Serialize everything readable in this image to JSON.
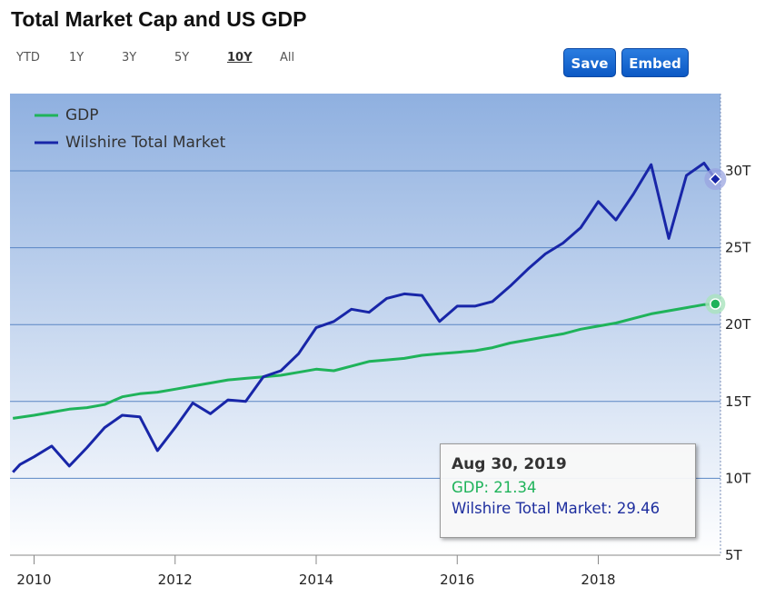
{
  "title": "Total Market Cap and US GDP",
  "range_buttons": [
    {
      "label": "YTD",
      "active": false
    },
    {
      "label": "1Y",
      "active": false
    },
    {
      "label": "3Y",
      "active": false
    },
    {
      "label": "5Y",
      "active": false
    },
    {
      "label": "10Y",
      "active": true
    },
    {
      "label": "All",
      "active": false
    }
  ],
  "actions": {
    "save_label": "Save",
    "embed_label": "Embed"
  },
  "tooltip": {
    "date": "Aug 30, 2019",
    "gdp": "GDP: 21.34",
    "wilshire": "Wilshire Total Market: 29.46"
  },
  "colors": {
    "gdp": "#1fb35a",
    "wilshire": "#1826a8",
    "plot_top": "#8fb0e0",
    "plot_bottom": "#ffffff"
  },
  "chart_data": {
    "type": "line",
    "title": "Total Market Cap and US GDP",
    "xlabel": "",
    "ylabel": "",
    "x_ticks": [
      "2010",
      "2012",
      "2014",
      "2016",
      "2018"
    ],
    "y_ticks": [
      "5T",
      "10T",
      "15T",
      "20T",
      "25T",
      "30T"
    ],
    "xlim": [
      2009.7,
      2019.7
    ],
    "ylim": [
      5,
      35
    ],
    "grid": true,
    "legend_position": "top-left",
    "series": [
      {
        "name": "GDP",
        "x": [
          2009.7,
          2010.0,
          2010.25,
          2010.5,
          2010.75,
          2011.0,
          2011.25,
          2011.5,
          2011.75,
          2012.0,
          2012.25,
          2012.5,
          2012.75,
          2013.0,
          2013.25,
          2013.5,
          2013.75,
          2014.0,
          2014.25,
          2014.5,
          2014.75,
          2015.0,
          2015.25,
          2015.5,
          2015.75,
          2016.0,
          2016.25,
          2016.5,
          2016.75,
          2017.0,
          2017.25,
          2017.5,
          2017.75,
          2018.0,
          2018.25,
          2018.5,
          2018.75,
          2019.0,
          2019.25,
          2019.5,
          2019.66
        ],
        "values": [
          13.9,
          14.1,
          14.3,
          14.5,
          14.6,
          14.8,
          15.3,
          15.5,
          15.6,
          15.8,
          16.0,
          16.2,
          16.4,
          16.5,
          16.6,
          16.7,
          16.9,
          17.1,
          17.0,
          17.3,
          17.6,
          17.7,
          17.8,
          18.0,
          18.1,
          18.2,
          18.3,
          18.5,
          18.8,
          19.0,
          19.2,
          19.4,
          19.7,
          19.9,
          20.1,
          20.4,
          20.7,
          20.9,
          21.1,
          21.3,
          21.34
        ]
      },
      {
        "name": "Wilshire Total Market",
        "x": [
          2009.7,
          2009.8,
          2010.0,
          2010.25,
          2010.5,
          2010.75,
          2011.0,
          2011.25,
          2011.5,
          2011.75,
          2012.0,
          2012.25,
          2012.5,
          2012.75,
          2013.0,
          2013.25,
          2013.5,
          2013.75,
          2014.0,
          2014.25,
          2014.5,
          2014.75,
          2015.0,
          2015.25,
          2015.5,
          2015.75,
          2016.0,
          2016.25,
          2016.5,
          2016.75,
          2017.0,
          2017.25,
          2017.5,
          2017.75,
          2018.0,
          2018.25,
          2018.5,
          2018.75,
          2019.0,
          2019.25,
          2019.5,
          2019.66
        ],
        "values": [
          10.4,
          10.9,
          11.4,
          12.1,
          10.8,
          12.0,
          13.3,
          14.1,
          14.0,
          11.8,
          13.3,
          14.9,
          14.2,
          15.1,
          15.0,
          16.6,
          17.0,
          18.1,
          19.8,
          20.2,
          21.0,
          20.8,
          21.7,
          22.0,
          21.9,
          20.2,
          21.2,
          21.2,
          21.5,
          22.5,
          23.6,
          24.6,
          25.3,
          26.3,
          28.0,
          26.8,
          28.5,
          30.4,
          25.6,
          29.7,
          30.5,
          29.46
        ]
      }
    ]
  }
}
